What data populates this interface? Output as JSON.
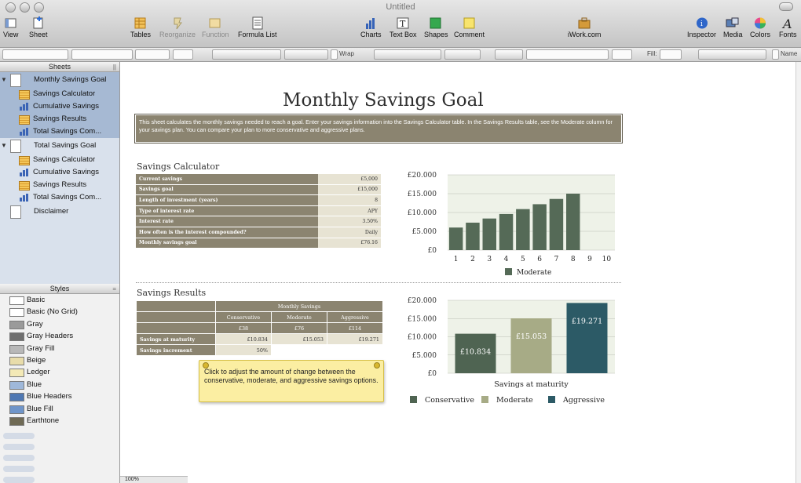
{
  "window": {
    "title": "Untitled"
  },
  "toolbar": {
    "items": [
      {
        "label": "View",
        "dim": false
      },
      {
        "label": "Sheet",
        "dim": false
      },
      {
        "label": "Tables",
        "dim": false
      },
      {
        "label": "Reorganize",
        "dim": true
      },
      {
        "label": "Function",
        "dim": true
      },
      {
        "label": "Formula List",
        "dim": false
      },
      {
        "label": "Charts",
        "dim": false
      },
      {
        "label": "Text Box",
        "dim": false
      },
      {
        "label": "Shapes",
        "dim": false
      },
      {
        "label": "Comment",
        "dim": false
      },
      {
        "label": "iWork.com",
        "dim": false
      },
      {
        "label": "Inspector",
        "dim": false
      },
      {
        "label": "Media",
        "dim": false
      },
      {
        "label": "Colors",
        "dim": false
      },
      {
        "label": "Fonts",
        "dim": false
      }
    ]
  },
  "formatbar": {
    "wrap_label": "Wrap",
    "fill_label": "Fill:",
    "name_label": "Name"
  },
  "sidebar": {
    "sheets_header": "Sheets",
    "sheets": [
      {
        "name": "Monthly Savings Goal",
        "selected": true,
        "items": [
          {
            "label": "Savings Calculator",
            "kind": "table"
          },
          {
            "label": "Cumulative Savings",
            "kind": "chart"
          },
          {
            "label": "Savings Results",
            "kind": "table"
          },
          {
            "label": "Total Savings Com...",
            "kind": "chart"
          }
        ]
      },
      {
        "name": "Total Savings Goal",
        "selected": false,
        "items": [
          {
            "label": "Savings Calculator",
            "kind": "table"
          },
          {
            "label": "Cumulative Savings",
            "kind": "chart"
          },
          {
            "label": "Savings Results",
            "kind": "table"
          },
          {
            "label": "Total Savings Com...",
            "kind": "chart"
          }
        ]
      },
      {
        "name": "Disclaimer",
        "selected": false,
        "items": []
      }
    ],
    "styles_header": "Styles",
    "styles": [
      {
        "label": "Basic",
        "color": "#ffffff"
      },
      {
        "label": "Basic (No Grid)",
        "color": "#ffffff"
      },
      {
        "label": "Gray",
        "color": "#9a9a9a"
      },
      {
        "label": "Gray Headers",
        "color": "#6e6e6e"
      },
      {
        "label": "Gray Fill",
        "color": "#b8b8b8"
      },
      {
        "label": "Beige",
        "color": "#e8dcaa"
      },
      {
        "label": "Ledger",
        "color": "#f3e9b6"
      },
      {
        "label": "Blue",
        "color": "#9fb8da"
      },
      {
        "label": "Blue Headers",
        "color": "#4f78b3"
      },
      {
        "label": "Blue Fill",
        "color": "#6f95c9"
      },
      {
        "label": "Earthtone",
        "color": "#6f6a55"
      }
    ]
  },
  "document": {
    "title": "Monthly Savings Goal",
    "description": "This sheet calculates the monthly savings needed to reach a goal. Enter your savings information into the Savings Calculator table. In the Savings Results table, see the Moderate column for your savings plan. You can compare your plan to more conservative and aggressive plans.",
    "calculator": {
      "title": "Savings Calculator",
      "rows": [
        {
          "label": "Current savings",
          "value": "£5,000"
        },
        {
          "label": "Savings goal",
          "value": "£15,000"
        },
        {
          "label": "Length of investment (years)",
          "value": "8"
        },
        {
          "label": "Type of interest rate",
          "value": "APY"
        },
        {
          "label": "Interest rate",
          "value": "3.50%"
        },
        {
          "label": "How often is the interest compounded?",
          "value": "Daily"
        },
        {
          "label": "Monthly savings goal",
          "value": "£76.16"
        }
      ]
    },
    "results": {
      "title": "Savings Results",
      "group_header": "Monthly Savings",
      "columns": [
        "Conservative",
        "Moderate",
        "Aggressive"
      ],
      "monthly": [
        "£38",
        "£76",
        "£114"
      ],
      "rows": [
        {
          "label": "Savings at maturity",
          "values": [
            "£10.834",
            "£15.053",
            "£19.271"
          ]
        },
        {
          "label": "Savings increment",
          "values": [
            "50%"
          ]
        }
      ]
    },
    "callout": "Click to adjust the amount of change between the conservative, moderate, and aggressive savings options.",
    "zoom": "100%"
  },
  "chart_data": [
    {
      "type": "bar",
      "categories": [
        "1",
        "2",
        "3",
        "4",
        "5",
        "6",
        "7",
        "8",
        "9",
        "10"
      ],
      "series": [
        {
          "name": "Moderate",
          "values": [
            6000,
            7300,
            8400,
            9600,
            10900,
            12200,
            13600,
            15000,
            null,
            null
          ],
          "color": "#556a57"
        }
      ],
      "ylim": [
        0,
        20000
      ],
      "yticks": [
        "£0",
        "£5.000",
        "£10.000",
        "£15.000",
        "£20.000"
      ],
      "legend": "bottom"
    },
    {
      "type": "bar",
      "categories": [
        "Conservative",
        "Moderate",
        "Aggressive"
      ],
      "values": [
        10834,
        15053,
        19271
      ],
      "data_labels": [
        "£10.834",
        "£15.053",
        "£19.271"
      ],
      "colors": [
        "#4f6452",
        "#a7ab86",
        "#2c5a66"
      ],
      "xlabel": "Savings at maturity",
      "ylim": [
        0,
        20000
      ],
      "yticks": [
        "£0",
        "£5.000",
        "£10.000",
        "£15.000",
        "£20.000"
      ],
      "legend": "bottom"
    }
  ]
}
